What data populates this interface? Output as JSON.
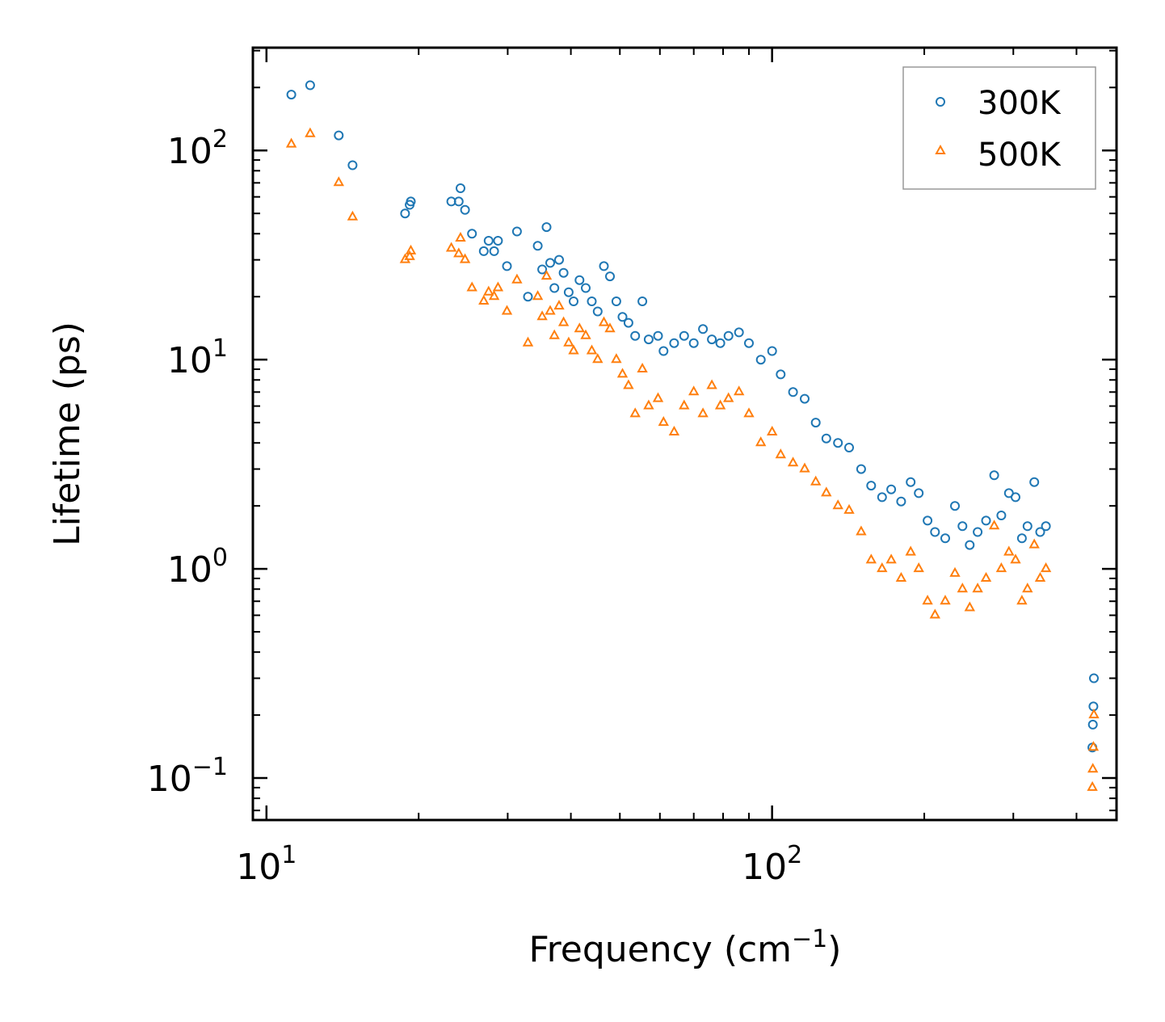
{
  "chart_data": {
    "type": "scatter",
    "xscale": "log",
    "yscale": "log",
    "xlabel": "Frequency (cm",
    "xlabel_sup": "−1",
    "xlabel_end": ")",
    "ylabel": "Lifetime (ps)",
    "xlim": [
      9.4,
      480
    ],
    "ylim": [
      0.063,
      310
    ],
    "x_ticks": [
      {
        "base": "10",
        "exp": "1",
        "value": 10
      },
      {
        "base": "10",
        "exp": "2",
        "value": 100
      }
    ],
    "y_ticks": [
      {
        "base": "10",
        "exp": "−1",
        "value": 0.1
      },
      {
        "base": "10",
        "exp": "0",
        "value": 1
      },
      {
        "base": "10",
        "exp": "1",
        "value": 10
      },
      {
        "base": "10",
        "exp": "2",
        "value": 100
      }
    ],
    "legend": {
      "position": "top-right"
    },
    "series": [
      {
        "name": "300K",
        "marker": "circle",
        "color": "#1f77b4",
        "points": [
          [
            11.2,
            185
          ],
          [
            12.2,
            205
          ],
          [
            13.9,
            118
          ],
          [
            14.8,
            85
          ],
          [
            18.8,
            50
          ],
          [
            19.2,
            55
          ],
          [
            19.3,
            57
          ],
          [
            23.2,
            57
          ],
          [
            24,
            57
          ],
          [
            24.2,
            66
          ],
          [
            24.7,
            52
          ],
          [
            25.5,
            40
          ],
          [
            26.9,
            33
          ],
          [
            27.5,
            37
          ],
          [
            28.2,
            33
          ],
          [
            28.7,
            37
          ],
          [
            29.9,
            28
          ],
          [
            31.3,
            41
          ],
          [
            32.9,
            20
          ],
          [
            34.4,
            35
          ],
          [
            35.1,
            27
          ],
          [
            35.8,
            43
          ],
          [
            36.4,
            29
          ],
          [
            37.1,
            22
          ],
          [
            37.9,
            30
          ],
          [
            38.7,
            26
          ],
          [
            39.6,
            21
          ],
          [
            40.5,
            19
          ],
          [
            41.6,
            24
          ],
          [
            42.8,
            22
          ],
          [
            44,
            19
          ],
          [
            45.2,
            17
          ],
          [
            46.5,
            28
          ],
          [
            47.8,
            25
          ],
          [
            49.2,
            19
          ],
          [
            50.6,
            16
          ],
          [
            52,
            15
          ],
          [
            53.6,
            13
          ],
          [
            55.4,
            19
          ],
          [
            57,
            12.5
          ],
          [
            59.5,
            13
          ],
          [
            61,
            11
          ],
          [
            64,
            12
          ],
          [
            67,
            13
          ],
          [
            70,
            12
          ],
          [
            73,
            14
          ],
          [
            76,
            12.5
          ],
          [
            79,
            12
          ],
          [
            82,
            13
          ],
          [
            86,
            13.5
          ],
          [
            90,
            12
          ],
          [
            95,
            10
          ],
          [
            100,
            11
          ],
          [
            104,
            8.5
          ],
          [
            110,
            7
          ],
          [
            116,
            6.5
          ],
          [
            122,
            5
          ],
          [
            128,
            4.2
          ],
          [
            135,
            4
          ],
          [
            142,
            3.8
          ],
          [
            150,
            3
          ],
          [
            157,
            2.5
          ],
          [
            165,
            2.2
          ],
          [
            172,
            2.4
          ],
          [
            180,
            2.1
          ],
          [
            188,
            2.6
          ],
          [
            195,
            2.3
          ],
          [
            203,
            1.7
          ],
          [
            210,
            1.5
          ],
          [
            220,
            1.4
          ],
          [
            230,
            2
          ],
          [
            238,
            1.6
          ],
          [
            246,
            1.3
          ],
          [
            255,
            1.5
          ],
          [
            265,
            1.7
          ],
          [
            275,
            2.8
          ],
          [
            284,
            1.8
          ],
          [
            294,
            2.3
          ],
          [
            303,
            2.2
          ],
          [
            312,
            1.4
          ],
          [
            320,
            1.6
          ],
          [
            330,
            2.6
          ],
          [
            339,
            1.5
          ],
          [
            348,
            1.6
          ],
          [
            430,
            0.14
          ],
          [
            431,
            0.18
          ],
          [
            432,
            0.22
          ],
          [
            433,
            0.3
          ]
        ]
      },
      {
        "name": "500K",
        "marker": "triangle",
        "color": "#ff7f0e",
        "points": [
          [
            11.2,
            107
          ],
          [
            12.2,
            120
          ],
          [
            13.9,
            70
          ],
          [
            14.8,
            48
          ],
          [
            18.8,
            30
          ],
          [
            19.2,
            31
          ],
          [
            19.3,
            33
          ],
          [
            23.2,
            34
          ],
          [
            24,
            32
          ],
          [
            24.2,
            38
          ],
          [
            24.7,
            30
          ],
          [
            25.5,
            22
          ],
          [
            26.9,
            19
          ],
          [
            27.5,
            21
          ],
          [
            28.2,
            20
          ],
          [
            28.7,
            22
          ],
          [
            29.9,
            17
          ],
          [
            31.3,
            24
          ],
          [
            32.9,
            12
          ],
          [
            34.4,
            20
          ],
          [
            35.1,
            16
          ],
          [
            35.8,
            25
          ],
          [
            36.4,
            17
          ],
          [
            37.1,
            13
          ],
          [
            37.9,
            18
          ],
          [
            38.7,
            15
          ],
          [
            39.6,
            12
          ],
          [
            40.5,
            11
          ],
          [
            41.6,
            14
          ],
          [
            42.8,
            13
          ],
          [
            44,
            11
          ],
          [
            45.2,
            10
          ],
          [
            46.5,
            15
          ],
          [
            47.8,
            14
          ],
          [
            49.2,
            10
          ],
          [
            50.6,
            8.5
          ],
          [
            52,
            7.5
          ],
          [
            53.6,
            5.5
          ],
          [
            55.4,
            9
          ],
          [
            57,
            6
          ],
          [
            59.5,
            6.5
          ],
          [
            61,
            5
          ],
          [
            64,
            4.5
          ],
          [
            67,
            6
          ],
          [
            70,
            7
          ],
          [
            73,
            5.5
          ],
          [
            76,
            7.5
          ],
          [
            79,
            6
          ],
          [
            82,
            6.5
          ],
          [
            86,
            7
          ],
          [
            90,
            5.5
          ],
          [
            95,
            4
          ],
          [
            100,
            4.5
          ],
          [
            104,
            3.5
          ],
          [
            110,
            3.2
          ],
          [
            116,
            3
          ],
          [
            122,
            2.6
          ],
          [
            128,
            2.3
          ],
          [
            135,
            2
          ],
          [
            142,
            1.9
          ],
          [
            150,
            1.5
          ],
          [
            157,
            1.1
          ],
          [
            165,
            1
          ],
          [
            172,
            1.1
          ],
          [
            180,
            0.9
          ],
          [
            188,
            1.2
          ],
          [
            195,
            1
          ],
          [
            203,
            0.7
          ],
          [
            210,
            0.6
          ],
          [
            220,
            0.7
          ],
          [
            230,
            0.95
          ],
          [
            238,
            0.8
          ],
          [
            246,
            0.65
          ],
          [
            255,
            0.8
          ],
          [
            265,
            0.9
          ],
          [
            275,
            1.6
          ],
          [
            284,
            1
          ],
          [
            294,
            1.2
          ],
          [
            303,
            1.1
          ],
          [
            312,
            0.7
          ],
          [
            320,
            0.8
          ],
          [
            330,
            1.3
          ],
          [
            339,
            0.9
          ],
          [
            348,
            1
          ],
          [
            430,
            0.09
          ],
          [
            431,
            0.11
          ],
          [
            432,
            0.14
          ],
          [
            433,
            0.2
          ]
        ]
      }
    ]
  }
}
